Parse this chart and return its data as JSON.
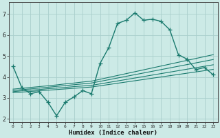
{
  "x": [
    0,
    1,
    2,
    3,
    4,
    5,
    6,
    7,
    8,
    9,
    10,
    11,
    12,
    13,
    14,
    15,
    16,
    17,
    18,
    19,
    20,
    21,
    22,
    23
  ],
  "y_main": [
    4.5,
    3.5,
    3.2,
    3.3,
    2.8,
    2.15,
    2.8,
    3.05,
    3.35,
    3.2,
    4.65,
    5.4,
    6.55,
    6.7,
    7.05,
    6.7,
    6.75,
    6.65,
    6.25,
    5.05,
    4.85,
    4.35,
    4.45,
    4.1
  ],
  "y_diag1": [
    3.25,
    3.28,
    3.31,
    3.34,
    3.37,
    3.4,
    3.43,
    3.46,
    3.49,
    3.52,
    3.58,
    3.64,
    3.7,
    3.76,
    3.82,
    3.88,
    3.94,
    4.0,
    4.06,
    4.12,
    4.18,
    4.24,
    4.3,
    4.36
  ],
  "y_diag2": [
    3.3,
    3.34,
    3.37,
    3.4,
    3.44,
    3.47,
    3.5,
    3.54,
    3.57,
    3.6,
    3.67,
    3.74,
    3.81,
    3.88,
    3.95,
    4.02,
    4.09,
    4.16,
    4.23,
    4.3,
    4.37,
    4.44,
    4.51,
    4.58
  ],
  "y_diag3": [
    3.35,
    3.4,
    3.43,
    3.47,
    3.51,
    3.55,
    3.59,
    3.63,
    3.67,
    3.71,
    3.79,
    3.87,
    3.95,
    4.03,
    4.11,
    4.19,
    4.27,
    4.35,
    4.43,
    4.51,
    4.59,
    4.67,
    4.75,
    4.83
  ],
  "y_diag4": [
    3.42,
    3.46,
    3.5,
    3.54,
    3.58,
    3.62,
    3.67,
    3.71,
    3.76,
    3.8,
    3.89,
    3.98,
    4.07,
    4.16,
    4.25,
    4.34,
    4.43,
    4.52,
    4.61,
    4.7,
    4.79,
    4.88,
    4.97,
    5.06
  ],
  "line_color": "#1a7a6e",
  "bg_color": "#cceae6",
  "grid_color": "#aacfcc",
  "xlabel": "Humidex (Indice chaleur)",
  "xlim": [
    -0.5,
    23.5
  ],
  "ylim": [
    1.85,
    7.55
  ],
  "yticks": [
    2,
    3,
    4,
    5,
    6,
    7
  ],
  "xticks": [
    0,
    1,
    2,
    3,
    4,
    5,
    6,
    7,
    8,
    9,
    10,
    11,
    12,
    13,
    14,
    15,
    16,
    17,
    18,
    19,
    20,
    21,
    22,
    23
  ],
  "marker": "+",
  "marker_size": 4,
  "linewidth_main": 1.0,
  "linewidth_diag": 0.8
}
